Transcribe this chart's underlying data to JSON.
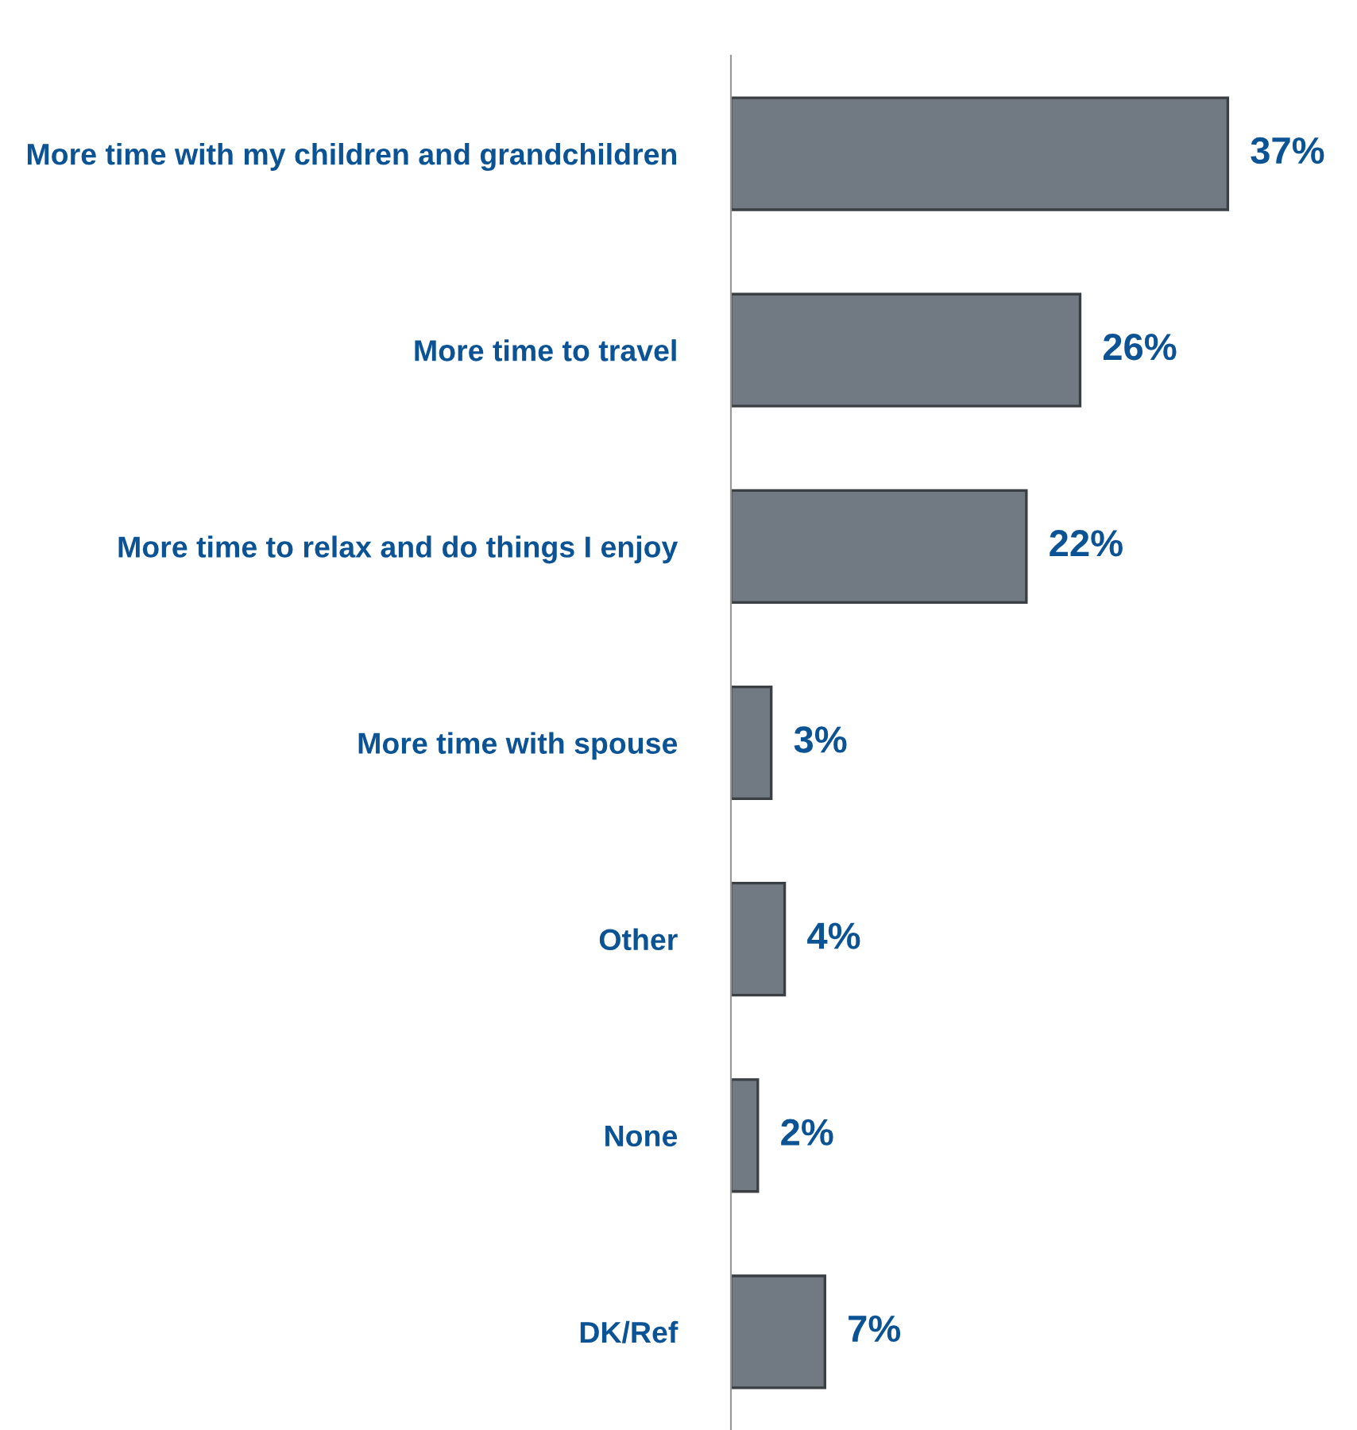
{
  "chart_data": {
    "type": "bar",
    "orientation": "horizontal",
    "categories": [
      "More time with my children and grandchildren",
      "More time to travel",
      "More time to relax and do things I enjoy",
      "More time with spouse",
      "Other",
      "None",
      "DK/Ref"
    ],
    "values": [
      37,
      26,
      22,
      3,
      4,
      2,
      7
    ],
    "value_labels": [
      "37%",
      "26%",
      "22%",
      "3%",
      "4%",
      "2%",
      "7%"
    ],
    "color": "#717a83",
    "tick_labels": "y",
    "grid": false,
    "legend": false
  }
}
